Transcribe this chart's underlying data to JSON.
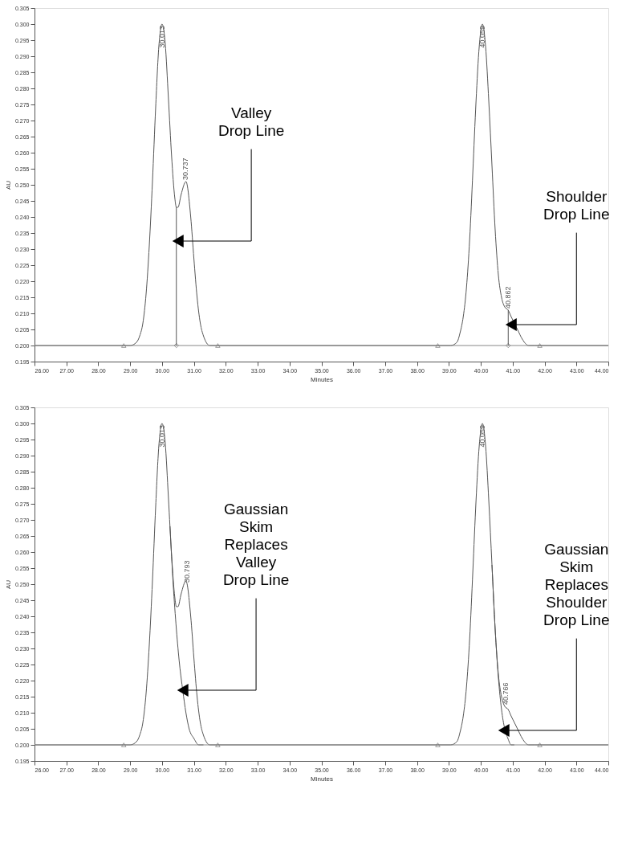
{
  "chart_data": [
    {
      "type": "line",
      "xlabel": "Minutes",
      "ylabel": "AU",
      "xlim": [
        26,
        44
      ],
      "ylim": [
        0.195,
        0.305
      ],
      "xticks": [
        {
          "value": 26,
          "label": "26.00"
        },
        {
          "value": 27,
          "label": "27.00"
        },
        {
          "value": 28,
          "label": "28.00"
        },
        {
          "value": 29,
          "label": "29.00"
        },
        {
          "value": 30,
          "label": "30.00"
        },
        {
          "value": 31,
          "label": "31.00"
        },
        {
          "value": 32,
          "label": "32.00"
        },
        {
          "value": 33,
          "label": "33.00"
        },
        {
          "value": 34,
          "label": "34.00"
        },
        {
          "value": 35,
          "label": "35.00"
        },
        {
          "value": 36,
          "label": "36.00"
        },
        {
          "value": 37,
          "label": "37.00"
        },
        {
          "value": 38,
          "label": "38.00"
        },
        {
          "value": 39,
          "label": "39.00"
        },
        {
          "value": 40,
          "label": "40.00"
        },
        {
          "value": 41,
          "label": "41.00"
        },
        {
          "value": 42,
          "label": "42.00"
        },
        {
          "value": 43,
          "label": "43.00"
        },
        {
          "value": 44,
          "label": "44.00"
        }
      ],
      "yticks": [
        0.195,
        {
          "value": 0.2,
          "label": "0.200"
        },
        0.205,
        {
          "value": 0.21,
          "label": "0.210"
        },
        0.215,
        {
          "value": 0.22,
          "label": "0.220"
        },
        0.225,
        {
          "value": 0.23,
          "label": "0.230"
        },
        0.235,
        {
          "value": 0.24,
          "label": "0.240"
        },
        0.245,
        {
          "value": 0.25,
          "label": "0.250"
        },
        0.255,
        {
          "value": 0.26,
          "label": "0.260"
        },
        0.265,
        {
          "value": 0.27,
          "label": "0.270"
        },
        0.275,
        {
          "value": 0.28,
          "label": "0.280"
        },
        0.285,
        {
          "value": 0.29,
          "label": "0.290"
        },
        0.295,
        {
          "value": 0.3,
          "label": "0.300"
        },
        0.305
      ],
      "grid": false,
      "legend": false,
      "line_style": "solid",
      "series": [
        {
          "type": "line",
          "color": "#555555",
          "x": [
            26,
            29.0,
            29.2,
            29.3,
            29.4,
            29.5,
            29.6,
            29.7,
            29.8,
            29.9,
            30.0,
            30.1,
            30.2,
            30.3,
            30.4,
            30.45,
            30.5,
            30.6,
            30.75,
            30.9,
            31.0,
            31.1,
            31.2,
            31.3,
            31.5,
            31.7,
            39.05,
            39.25,
            39.35,
            39.45,
            39.55,
            39.65,
            39.75,
            39.85,
            39.95,
            40.05,
            40.15,
            40.25,
            40.35,
            40.45,
            40.55,
            40.65,
            40.75,
            40.86,
            40.95,
            41.05,
            41.15,
            41.3,
            41.5,
            41.7,
            44
          ],
          "values": [
            0.2,
            0.2,
            0.201,
            0.203,
            0.207,
            0.216,
            0.231,
            0.251,
            0.274,
            0.293,
            0.3,
            0.294,
            0.277,
            0.259,
            0.246,
            0.243,
            0.243,
            0.247,
            0.251,
            0.24,
            0.227,
            0.215,
            0.207,
            0.203,
            0.2,
            0.2,
            0.2,
            0.201,
            0.204,
            0.209,
            0.218,
            0.233,
            0.254,
            0.276,
            0.293,
            0.3,
            0.293,
            0.276,
            0.256,
            0.236,
            0.222,
            0.215,
            0.212,
            0.211,
            0.209,
            0.207,
            0.205,
            0.202,
            0.2,
            0.2,
            0.2
          ]
        },
        {
          "type": "line",
          "color": "#555555",
          "x": [
            30.45,
            30.45
          ],
          "values": [
            0.2,
            0.243
          ]
        },
        {
          "type": "line",
          "color": "#555555",
          "x": [
            40.86,
            40.86
          ],
          "values": [
            0.2,
            0.211
          ]
        },
        {
          "type": "scatter",
          "marker": "triangle",
          "color": "#555555",
          "x": [
            28.8,
            31.75,
            38.65,
            41.85
          ],
          "values": [
            0.2,
            0.2,
            0.2,
            0.2
          ]
        },
        {
          "type": "scatter",
          "marker": "diamond",
          "color": "#555555",
          "x": [
            30.45,
            40.86
          ],
          "values": [
            0.2,
            0.2
          ]
        }
      ],
      "ref_lines": [
        {
          "axis": "y",
          "value": 0.2,
          "color": "#888888"
        }
      ],
      "annotations": [
        {
          "text": "30.013",
          "x": 30.013,
          "y": 0.3
        },
        {
          "text": "30.737",
          "x": 30.737,
          "y": 0.251
        },
        {
          "text": "40.059",
          "x": 40.059,
          "y": 0.3
        },
        {
          "text": "40.862",
          "x": 40.862,
          "y": 0.211
        },
        {
          "text": "Valley\nDrop Line",
          "x": 30.5,
          "y": 0.2325
        },
        {
          "text": "Shoulder\nDrop Line",
          "x": 40.95,
          "y": 0.2065
        }
      ]
    },
    {
      "type": "line",
      "xlabel": "Minutes",
      "ylabel": "AU",
      "xlim": [
        26,
        44
      ],
      "ylim": [
        0.195,
        0.305
      ],
      "xticks": [
        {
          "value": 26,
          "label": "26.00"
        },
        {
          "value": 27,
          "label": "27.00"
        },
        {
          "value": 28,
          "label": "28.00"
        },
        {
          "value": 29,
          "label": "29.00"
        },
        {
          "value": 30,
          "label": "30.00"
        },
        {
          "value": 31,
          "label": "31.00"
        },
        {
          "value": 32,
          "label": "32.00"
        },
        {
          "value": 33,
          "label": "33.00"
        },
        {
          "value": 34,
          "label": "34.00"
        },
        {
          "value": 35,
          "label": "35.00"
        },
        {
          "value": 36,
          "label": "36.00"
        },
        {
          "value": 37,
          "label": "37.00"
        },
        {
          "value": 38,
          "label": "38.00"
        },
        {
          "value": 39,
          "label": "39.00"
        },
        {
          "value": 40,
          "label": "40.00"
        },
        {
          "value": 41,
          "label": "41.00"
        },
        {
          "value": 42,
          "label": "42.00"
        },
        {
          "value": 43,
          "label": "43.00"
        },
        {
          "value": 44,
          "label": "44.00"
        }
      ],
      "yticks": [
        0.195,
        {
          "value": 0.2,
          "label": "0.200"
        },
        0.205,
        {
          "value": 0.21,
          "label": "0.210"
        },
        0.215,
        {
          "value": 0.22,
          "label": "0.220"
        },
        0.225,
        {
          "value": 0.23,
          "label": "0.230"
        },
        0.235,
        {
          "value": 0.24,
          "label": "0.240"
        },
        0.245,
        {
          "value": 0.25,
          "label": "0.250"
        },
        0.255,
        {
          "value": 0.26,
          "label": "0.260"
        },
        0.265,
        {
          "value": 0.27,
          "label": "0.270"
        },
        0.275,
        {
          "value": 0.28,
          "label": "0.280"
        },
        0.285,
        {
          "value": 0.29,
          "label": "0.290"
        },
        0.295,
        {
          "value": 0.3,
          "label": "0.300"
        },
        0.305
      ],
      "grid": false,
      "legend": false,
      "line_style": "solid",
      "series": [
        {
          "type": "line",
          "color": "#555555",
          "x": [
            26,
            29.0,
            29.2,
            29.3,
            29.4,
            29.5,
            29.6,
            29.7,
            29.8,
            29.9,
            30.0,
            30.1,
            30.2,
            30.3,
            30.4,
            30.45,
            30.5,
            30.6,
            30.75,
            30.9,
            31.0,
            31.1,
            31.2,
            31.3,
            31.5,
            31.7,
            39.05,
            39.25,
            39.35,
            39.45,
            39.55,
            39.65,
            39.75,
            39.85,
            39.95,
            40.05,
            40.15,
            40.25,
            40.35,
            40.45,
            40.55,
            40.65,
            40.75,
            40.86,
            40.95,
            41.05,
            41.15,
            41.3,
            41.5,
            41.7,
            44
          ],
          "values": [
            0.2,
            0.2,
            0.201,
            0.203,
            0.207,
            0.216,
            0.231,
            0.251,
            0.274,
            0.293,
            0.3,
            0.294,
            0.277,
            0.259,
            0.246,
            0.243,
            0.243,
            0.247,
            0.251,
            0.24,
            0.227,
            0.215,
            0.207,
            0.203,
            0.2,
            0.2,
            0.2,
            0.201,
            0.204,
            0.209,
            0.218,
            0.233,
            0.254,
            0.276,
            0.293,
            0.3,
            0.293,
            0.276,
            0.256,
            0.236,
            0.222,
            0.215,
            0.212,
            0.211,
            0.209,
            0.207,
            0.205,
            0.202,
            0.2,
            0.2,
            0.2
          ]
        },
        {
          "type": "line",
          "color": "#555555",
          "x": [
            30.25,
            30.35,
            30.45,
            30.55,
            30.65,
            30.75,
            30.85,
            31.0,
            31.15,
            31.3
          ],
          "values": [
            0.268,
            0.25,
            0.236,
            0.225,
            0.217,
            0.21,
            0.205,
            0.202,
            0.2,
            0.2
          ]
        },
        {
          "type": "line",
          "color": "#555555",
          "x": [
            40.35,
            40.45,
            40.55,
            40.65,
            40.75,
            40.85,
            40.95,
            41.05
          ],
          "values": [
            0.256,
            0.236,
            0.221,
            0.211,
            0.205,
            0.202,
            0.2,
            0.2
          ]
        },
        {
          "type": "scatter",
          "marker": "triangle",
          "color": "#555555",
          "x": [
            28.8,
            31.75,
            38.65,
            41.85
          ],
          "values": [
            0.2,
            0.2,
            0.2,
            0.2
          ]
        }
      ],
      "ref_lines": [
        {
          "axis": "y",
          "value": 0.2,
          "color": "#888888"
        }
      ],
      "annotations": [
        {
          "text": "30.013",
          "x": 30.013,
          "y": 0.3
        },
        {
          "text": "30.793",
          "x": 30.793,
          "y": 0.25
        },
        {
          "text": "40.059",
          "x": 40.059,
          "y": 0.3
        },
        {
          "text": "40.766",
          "x": 40.766,
          "y": 0.212
        },
        {
          "text": "Gaussian\nSkim\nReplaces\nValley\nDrop Line",
          "x": 30.65,
          "y": 0.217
        },
        {
          "text": "Gaussian\nSkim\nReplaces\nShoulder\nDrop Line",
          "x": 40.72,
          "y": 0.2045
        }
      ]
    }
  ]
}
